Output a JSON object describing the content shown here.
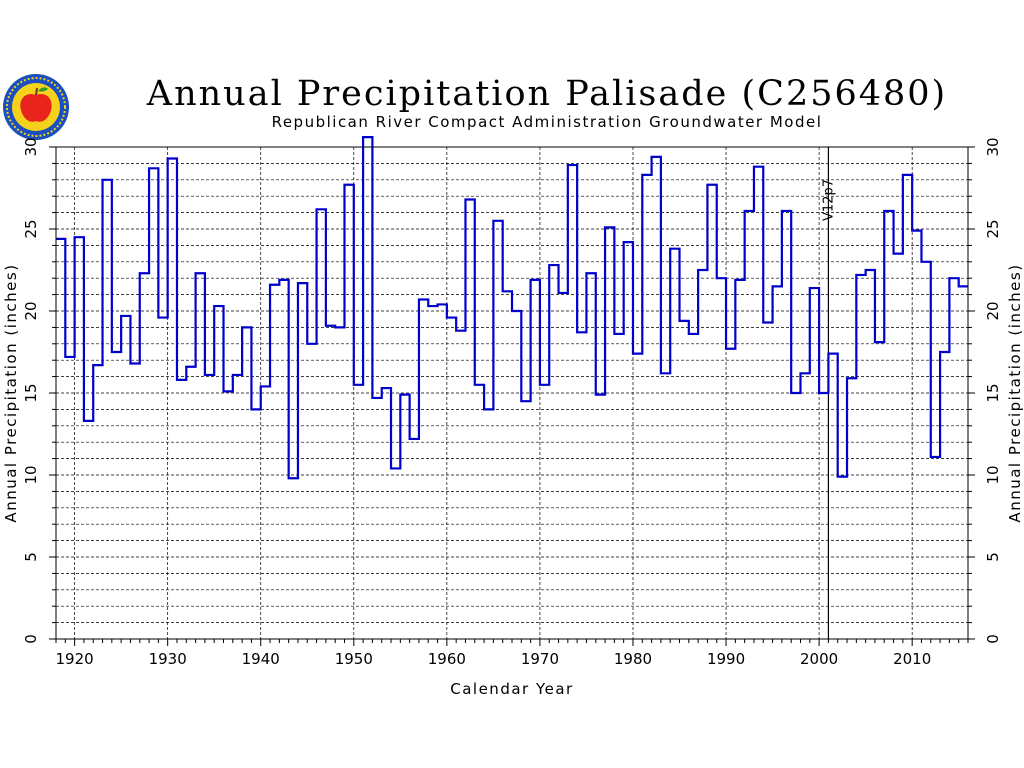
{
  "header": {
    "title": "Annual Precipitation Palisade (C256480)",
    "subtitle": "Republican River Compact Administration Groundwater Model"
  },
  "logo": {
    "icon": "apple-seal-icon",
    "colors": {
      "apple": "#e8241c",
      "ring": "#1a4fbf",
      "fill": "#f4d21c"
    }
  },
  "chart_data": {
    "type": "line",
    "style": "step",
    "xlabel": "Calendar Year",
    "ylabel": "Annual Precipitation (inches)",
    "ylabel_right": "Annual Precipitation (inches)",
    "xlim": [
      1918,
      2016
    ],
    "ylim": [
      0,
      30
    ],
    "x_ticks": [
      1920,
      1930,
      1940,
      1950,
      1960,
      1970,
      1980,
      1990,
      2000,
      2010
    ],
    "y_ticks": [
      0,
      5,
      10,
      15,
      20,
      25,
      30
    ],
    "grid": true,
    "marker_line": {
      "x": 2001,
      "label": "V12p7"
    },
    "series": [
      {
        "color": "#0000cc",
        "x": [
          1918,
          1919,
          1920,
          1921,
          1922,
          1923,
          1924,
          1925,
          1926,
          1927,
          1928,
          1929,
          1930,
          1931,
          1932,
          1933,
          1934,
          1935,
          1936,
          1937,
          1938,
          1939,
          1940,
          1941,
          1942,
          1943,
          1944,
          1945,
          1946,
          1947,
          1948,
          1949,
          1950,
          1951,
          1952,
          1953,
          1954,
          1955,
          1956,
          1957,
          1958,
          1959,
          1960,
          1961,
          1962,
          1963,
          1964,
          1965,
          1966,
          1967,
          1968,
          1969,
          1970,
          1971,
          1972,
          1973,
          1974,
          1975,
          1976,
          1977,
          1978,
          1979,
          1980,
          1981,
          1982,
          1983,
          1984,
          1985,
          1986,
          1987,
          1988,
          1989,
          1990,
          1991,
          1992,
          1993,
          1994,
          1995,
          1996,
          1997,
          1998,
          1999,
          2000,
          2001,
          2002,
          2003,
          2004,
          2005,
          2006,
          2007,
          2008,
          2009,
          2010,
          2011,
          2012,
          2013,
          2014,
          2015
        ],
        "values": [
          24.4,
          17.2,
          24.5,
          13.3,
          16.7,
          28.0,
          17.5,
          19.7,
          16.8,
          22.3,
          28.7,
          19.6,
          29.3,
          15.8,
          16.6,
          22.3,
          16.1,
          20.3,
          15.1,
          16.1,
          19.0,
          14.0,
          15.4,
          21.6,
          21.9,
          9.8,
          21.7,
          18.0,
          26.2,
          19.1,
          19.0,
          27.7,
          15.5,
          30.6,
          14.7,
          15.3,
          10.4,
          14.9,
          12.2,
          20.7,
          20.3,
          20.4,
          19.6,
          18.8,
          26.8,
          15.5,
          14.0,
          25.5,
          21.2,
          20.0,
          14.5,
          21.9,
          15.5,
          22.8,
          21.1,
          28.9,
          18.7,
          22.3,
          14.9,
          25.1,
          18.6,
          24.2,
          17.4,
          28.3,
          29.4,
          16.2,
          23.8,
          19.4,
          18.6,
          22.5,
          27.7,
          22.0,
          17.7,
          21.9,
          26.1,
          28.8,
          19.3,
          21.5,
          26.1,
          15.0,
          16.2,
          21.4,
          15.0,
          17.4,
          9.9,
          15.9,
          22.2,
          22.5,
          18.1,
          26.1,
          23.5,
          28.3,
          24.9,
          23.0,
          11.1,
          17.5,
          22.0,
          21.5
        ]
      }
    ]
  }
}
